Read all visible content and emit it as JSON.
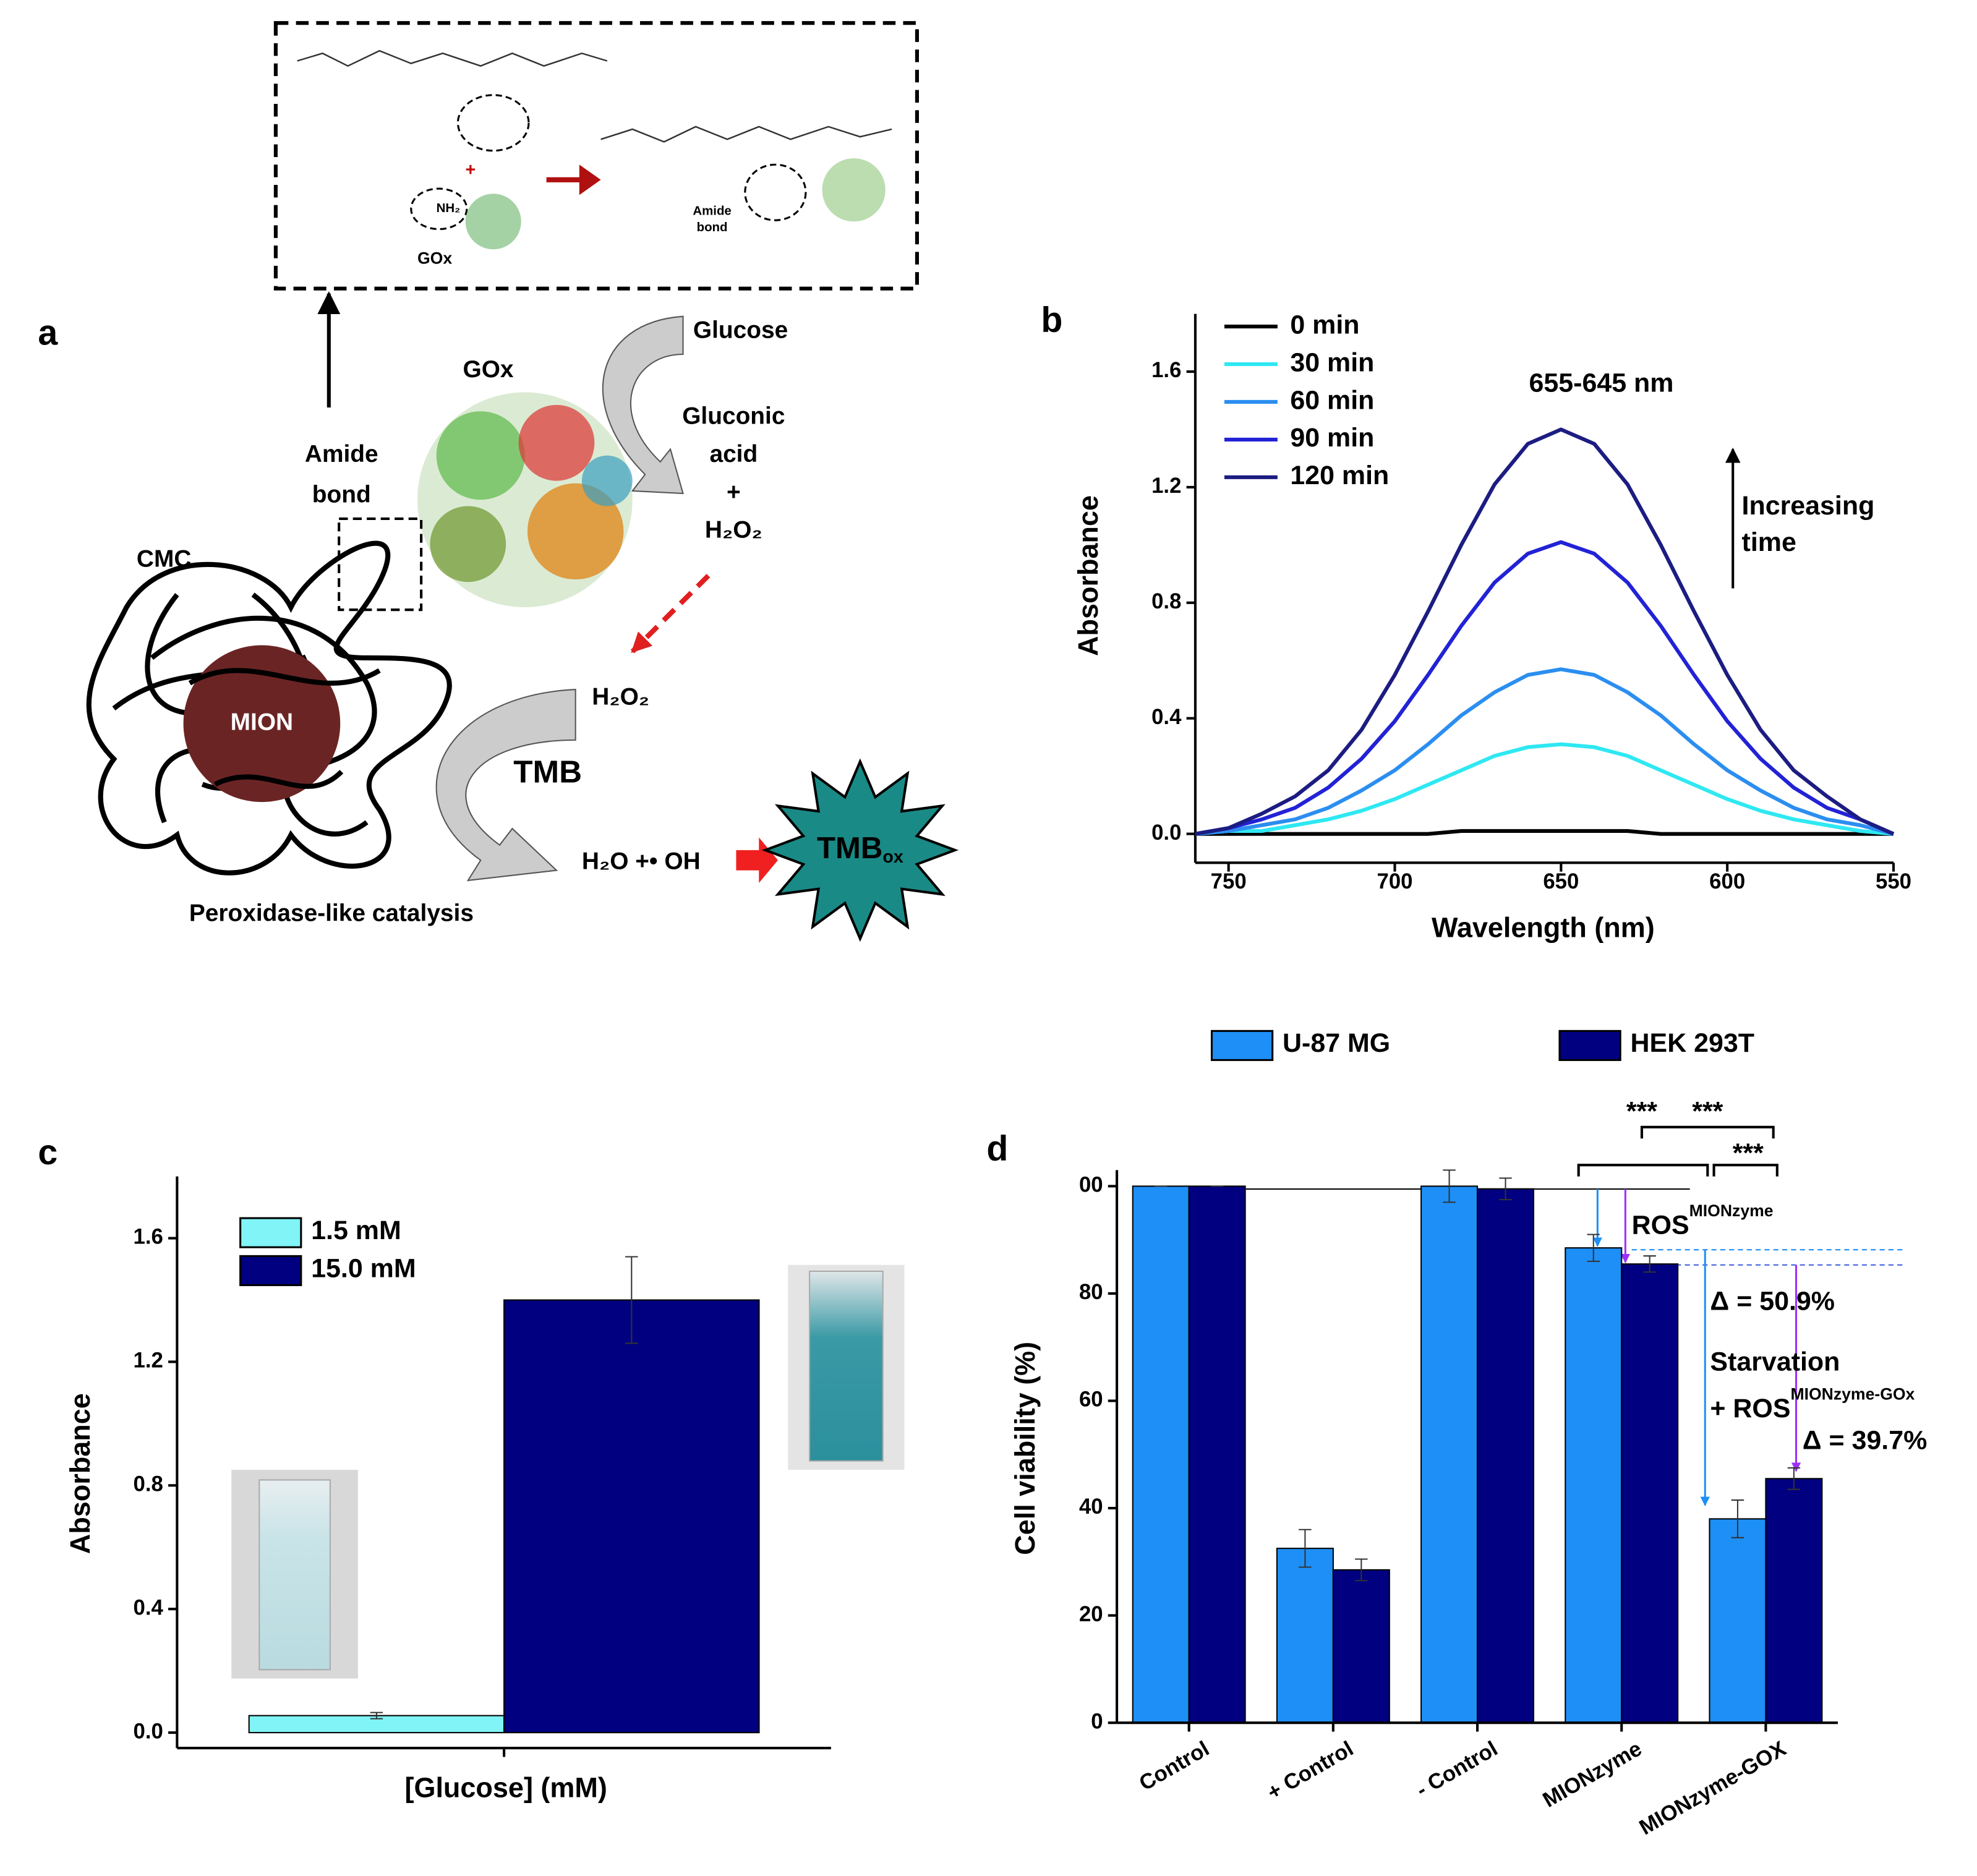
{
  "diagram": {
    "panel": "a",
    "glucose": "Glucose",
    "gox": "GOx",
    "gluconic": "Gluconic",
    "acid": "acid",
    "plus": "+",
    "h2o2_top": "H₂O₂",
    "amide": "Amide",
    "bond": "bond",
    "cmc": "CMC",
    "mion": "MION",
    "h2o2": "H₂O₂",
    "tmb": "TMB",
    "products": "H₂O +• OH",
    "tmbox": "TMB",
    "tmbox_sub": "ox",
    "peroxidase": "Peroxidase-like catalysis",
    "inset": {
      "nh2": "NH₂",
      "gox": "GOx",
      "plus": "+",
      "amide": "Amide",
      "bond": "bond"
    }
  },
  "chart_data": [
    {
      "type": "line",
      "panel": "b",
      "xlabel": "Wavelength (nm)",
      "ylabel": "Absorbance",
      "annotations": [
        "655-645 nm",
        "Increasing",
        "time"
      ],
      "xlim": [
        760,
        550
      ],
      "ylim": [
        -0.1,
        1.8
      ],
      "xticks": [
        750,
        700,
        650,
        600,
        550
      ],
      "yticks": [
        {
          "value": 0,
          "label": "0.0"
        },
        0.4,
        0.8,
        1.2,
        1.6
      ],
      "x": [
        760,
        750,
        740,
        730,
        720,
        710,
        700,
        690,
        680,
        670,
        660,
        650,
        640,
        630,
        620,
        610,
        600,
        590,
        580,
        570,
        560,
        550
      ],
      "series": [
        {
          "name": "0 min",
          "color": "#000000",
          "values": [
            0,
            0,
            0,
            0,
            0,
            0,
            0,
            0,
            0.01,
            0.01,
            0.01,
            0.01,
            0.01,
            0.01,
            0,
            0,
            0,
            0,
            0,
            0,
            0,
            0
          ]
        },
        {
          "name": "30 min",
          "color": "#2ee8f2",
          "values": [
            0,
            0.01,
            0.01,
            0.03,
            0.05,
            0.08,
            0.12,
            0.17,
            0.22,
            0.27,
            0.3,
            0.31,
            0.3,
            0.27,
            0.22,
            0.17,
            0.12,
            0.08,
            0.05,
            0.03,
            0.01,
            0
          ]
        },
        {
          "name": "60 min",
          "color": "#2b8ef0",
          "values": [
            0,
            0.01,
            0.03,
            0.05,
            0.09,
            0.15,
            0.22,
            0.31,
            0.41,
            0.49,
            0.55,
            0.57,
            0.55,
            0.49,
            0.41,
            0.31,
            0.22,
            0.15,
            0.09,
            0.05,
            0.03,
            0
          ]
        },
        {
          "name": "90 min",
          "color": "#2222d6",
          "values": [
            0,
            0.02,
            0.05,
            0.09,
            0.16,
            0.26,
            0.39,
            0.55,
            0.72,
            0.87,
            0.97,
            1.01,
            0.97,
            0.87,
            0.72,
            0.55,
            0.39,
            0.26,
            0.16,
            0.09,
            0.05,
            0
          ]
        },
        {
          "name": "120 min",
          "color": "#1c1c82",
          "values": [
            0,
            0.02,
            0.07,
            0.13,
            0.22,
            0.36,
            0.55,
            0.77,
            1.0,
            1.21,
            1.35,
            1.4,
            1.35,
            1.21,
            1.0,
            0.77,
            0.55,
            0.36,
            0.22,
            0.13,
            0.05,
            0
          ]
        }
      ]
    },
    {
      "type": "bar",
      "panel": "c",
      "xlabel": "[Glucose] (mM)",
      "ylabel": "Absorbance",
      "ylim": [
        -0.05,
        1.8
      ],
      "yticks": [
        {
          "value": 0,
          "label": "0.0"
        },
        0.4,
        0.8,
        1.2,
        1.6
      ],
      "categories": [
        null
      ],
      "series": [
        {
          "name": "1.5 mM",
          "color": "#80f4f6",
          "values": [
            0.055
          ],
          "errors": [
            0.01
          ]
        },
        {
          "name": "15.0 mM",
          "color": "#000080",
          "values": [
            1.4
          ],
          "errors": [
            0.14
          ]
        }
      ]
    },
    {
      "type": "bar",
      "panel": "d",
      "ylabel": "Cell viability (%)",
      "annotations": [
        "***",
        "***",
        "***",
        "ROS",
        "MIONzyme",
        "Δ = 50.9%",
        "Starvation",
        "+ ROS",
        "MIONzyme-GOx",
        "Δ = 39.7%"
      ],
      "ylim": [
        0,
        103
      ],
      "yticks": [
        0,
        20,
        40,
        60,
        80,
        {
          "value": 100,
          "label": "00"
        }
      ],
      "categories": [
        "Control",
        "+ Control",
        "- Control",
        "MIONzyme",
        "MIONzyme-GOX"
      ],
      "series": [
        {
          "name": "U-87 MG",
          "color": "#1e8ff6",
          "values": [
            100,
            32.5,
            100,
            88.5,
            38
          ],
          "errors": [
            0,
            3.5,
            3,
            2.5,
            3.5
          ]
        },
        {
          "name": "HEK 293T",
          "color": "#000080",
          "values": [
            100,
            28.5,
            99.5,
            85.5,
            45.5
          ],
          "errors": [
            0,
            2,
            2,
            1.5,
            2
          ]
        }
      ]
    }
  ]
}
